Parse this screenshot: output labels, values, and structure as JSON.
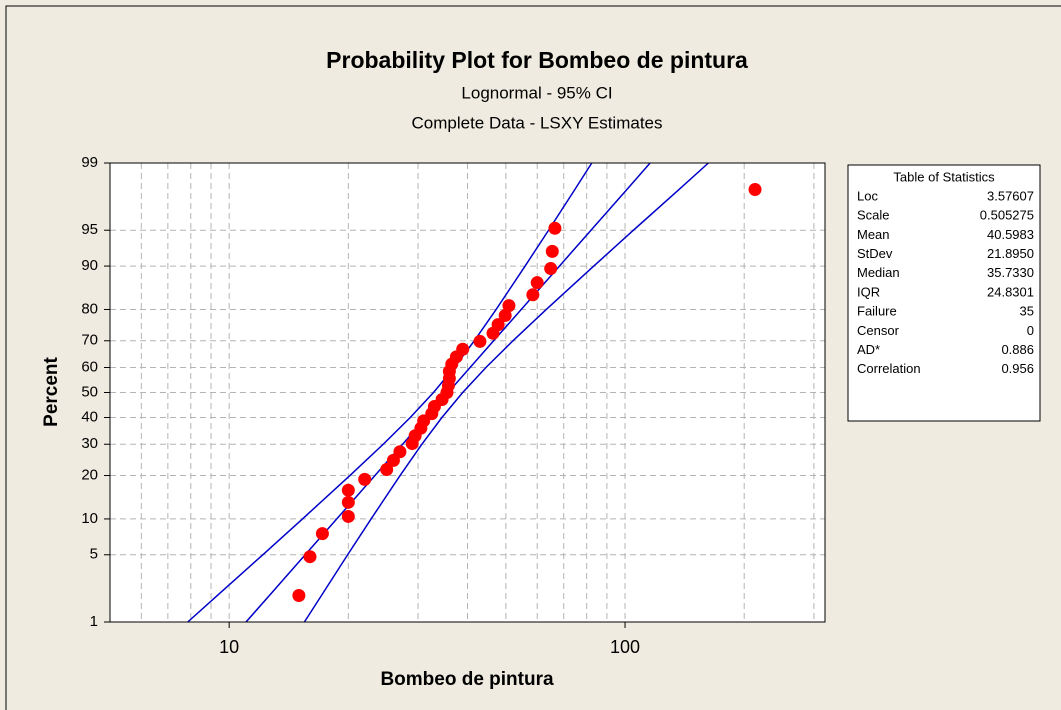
{
  "chart_data": {
    "type": "scatter",
    "title": "Probability Plot for Bombeo de pintura",
    "subtitle": [
      "Lognormal - 95% CI",
      "Complete Data - LSXY Estimates"
    ],
    "xlabel": "Bombeo de pintura",
    "ylabel": "Percent",
    "xscale": "log",
    "yscale": "normal probability",
    "xlim": [
      5,
      320
    ],
    "xticks": [
      10,
      100
    ],
    "xgrid": [
      6,
      7,
      8,
      9,
      10,
      20,
      30,
      40,
      50,
      60,
      70,
      80,
      90,
      100,
      200,
      300
    ],
    "ylim": [
      1,
      99
    ],
    "yticks": [
      1,
      5,
      10,
      20,
      30,
      40,
      50,
      60,
      70,
      80,
      90,
      95,
      99
    ],
    "grid": true,
    "series": [
      {
        "mode": "markers",
        "color": "#ff0000",
        "x": [
          15,
          16,
          17.2,
          20,
          20,
          20,
          22,
          25,
          26,
          27,
          29,
          29.5,
          30.5,
          31,
          32.5,
          33,
          34.5,
          35.5,
          35.8,
          36,
          36,
          36.5,
          37.5,
          38.9,
          43,
          46.4,
          47.8,
          49.8,
          50.9,
          58.5,
          60,
          64.9,
          65.5,
          66.5,
          213
        ],
        "y": [
          1.98,
          4.8,
          7.63,
          10.45,
          13.28,
          16.1,
          18.93,
          21.75,
          24.58,
          27.4,
          30.23,
          33.05,
          35.88,
          38.7,
          41.53,
          44.35,
          47.18,
          50,
          52.82,
          55.65,
          58.47,
          61.3,
          64.12,
          66.95,
          69.77,
          72.6,
          75.42,
          78.25,
          81.07,
          83.9,
          86.72,
          89.55,
          92.37,
          95.2,
          98.02
        ]
      },
      {
        "mode": "line",
        "color": "#0000c8",
        "x": [
          7.86,
          9.36,
          12.16,
          15.32,
          20.18,
          24.5,
          28.67,
          32.82,
          37.04,
          41.61,
          47.25,
          55.92,
          64.09,
          74.58,
          82.41
        ],
        "y": [
          1,
          2,
          5,
          10,
          20,
          30,
          40,
          50,
          60,
          70,
          80,
          90,
          95,
          98,
          99
        ]
      },
      {
        "mode": "line",
        "color": "#0000c8",
        "x": [
          11.03,
          12.66,
          15.56,
          18.7,
          23.35,
          27.42,
          31.44,
          35.73,
          40.61,
          46.56,
          54.67,
          68.28,
          82.03,
          100.9,
          115.7
        ],
        "y": [
          1,
          2,
          5,
          10,
          20,
          30,
          40,
          50,
          60,
          70,
          80,
          90,
          95,
          98,
          99
        ]
      },
      {
        "mode": "line",
        "color": "#0000c8",
        "x": [
          15.49,
          17.13,
          19.92,
          22.83,
          27.02,
          30.68,
          34.47,
          38.9,
          44.53,
          52.1,
          63.25,
          83.37,
          105.0,
          136.5,
          162.4
        ],
        "y": [
          1,
          2,
          5,
          10,
          20,
          30,
          40,
          50,
          60,
          70,
          80,
          90,
          95,
          98,
          99
        ]
      }
    ]
  },
  "stats_table": {
    "title": "Table of Statistics",
    "rows": [
      [
        "Loc",
        "3.57607"
      ],
      [
        "Scale",
        "0.505275"
      ],
      [
        "Mean",
        "40.5983"
      ],
      [
        "StDev",
        "21.8950"
      ],
      [
        "Median",
        "35.7330"
      ],
      [
        "IQR",
        "24.8301"
      ],
      [
        "Failure",
        "35"
      ],
      [
        "Censor",
        "0"
      ],
      [
        "AD*",
        "0.886"
      ],
      [
        "Correlation",
        "0.956"
      ]
    ]
  }
}
